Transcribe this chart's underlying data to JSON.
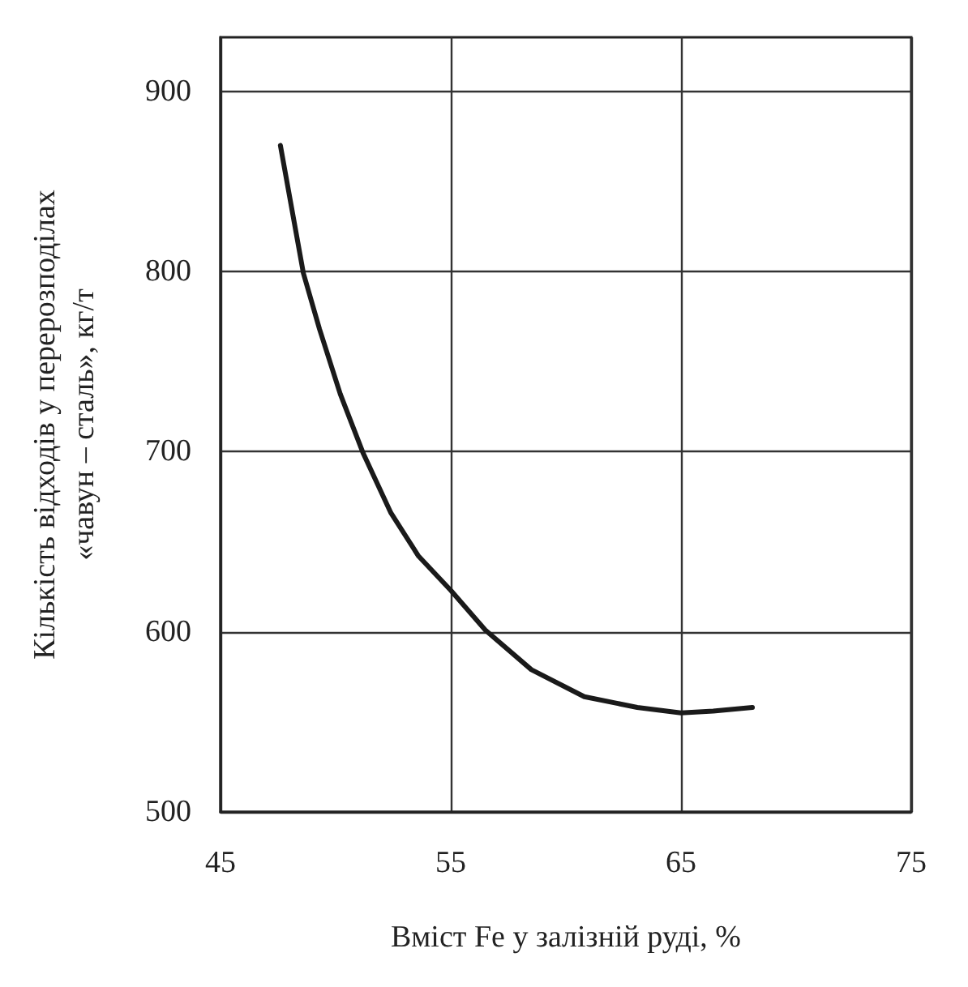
{
  "chart_data": {
    "type": "line",
    "xlabel": "Вміст Fe у залізній руді, %",
    "ylabel": "Кількість відходів у перерозподілах\n«чавун – сталь», кг/т",
    "xlim": [
      45,
      75
    ],
    "xticks": [
      45,
      55,
      65,
      75
    ],
    "ylim": [
      500,
      930
    ],
    "yticks": [
      500,
      600,
      700,
      800,
      900
    ],
    "grid": true,
    "marker": "none",
    "line_style": "solid",
    "series": [
      {
        "color": "#1a1a1a",
        "x": [
          47.6,
          48.6,
          49.3,
          50.2,
          51.2,
          52.4,
          53.6,
          55.0,
          56.5,
          58.5,
          60.8,
          63.1,
          65.0,
          66.4,
          68.1
        ],
        "values": [
          870,
          799,
          768,
          732,
          699,
          666,
          642,
          623,
          601,
          579,
          564,
          558,
          555,
          556,
          558
        ]
      }
    ]
  }
}
